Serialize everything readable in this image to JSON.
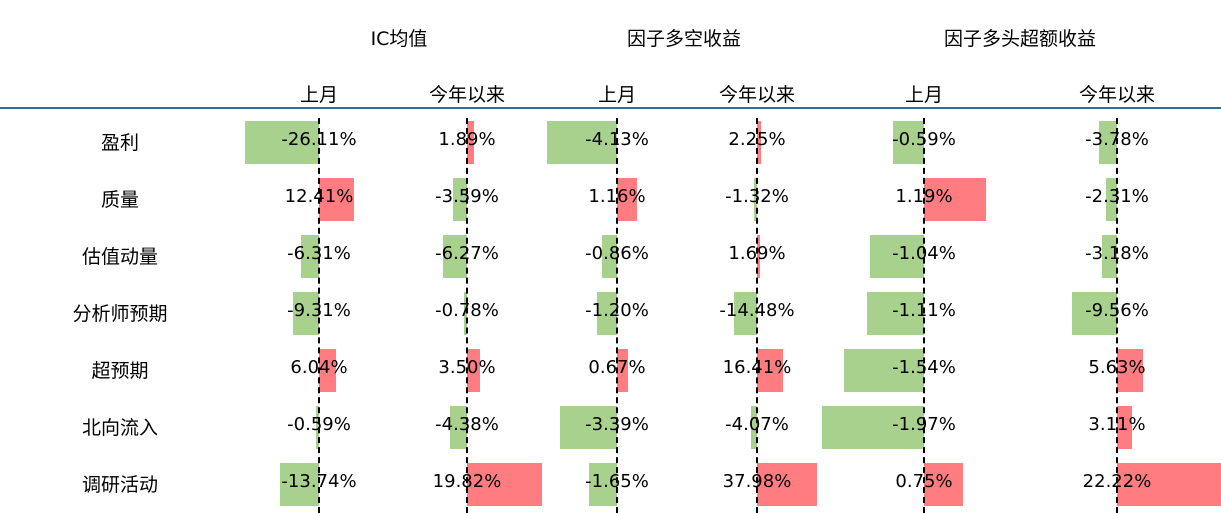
{
  "chart_data": {
    "type": "table",
    "row_labels": [
      "盈利",
      "质量",
      "估值动量",
      "分析师预期",
      "超预期",
      "北向流入",
      "调研活动"
    ],
    "groups": [
      {
        "title": "IC均值",
        "columns": [
          {
            "label": "上月",
            "values": [
              "-26.11%",
              "12.41%",
              "-6.31%",
              "-9.31%",
              "6.04%",
              "-0.59%",
              "-13.74%"
            ],
            "numbers": [
              -26.11,
              12.41,
              -6.31,
              -9.31,
              6.04,
              -0.59,
              -13.74
            ]
          },
          {
            "label": "今年以来",
            "values": [
              "1.89%",
              "-3.59%",
              "-6.27%",
              "-0.78%",
              "3.50%",
              "-4.38%",
              "19.82%"
            ],
            "numbers": [
              1.89,
              -3.59,
              -6.27,
              -0.78,
              3.5,
              -4.38,
              19.82
            ]
          }
        ]
      },
      {
        "title": "因子多空收益",
        "columns": [
          {
            "label": "上月",
            "values": [
              "-4.13%",
              "1.16%",
              "-0.86%",
              "-1.20%",
              "0.67%",
              "-3.39%",
              "-1.65%"
            ],
            "numbers": [
              -4.13,
              1.16,
              -0.86,
              -1.2,
              0.67,
              -3.39,
              -1.65
            ]
          },
          {
            "label": "今年以来",
            "values": [
              "2.25%",
              "-1.32%",
              "1.69%",
              "-14.48%",
              "16.41%",
              "-4.07%",
              "37.98%"
            ],
            "numbers": [
              2.25,
              -1.32,
              1.69,
              -14.48,
              16.41,
              -4.07,
              37.98
            ]
          }
        ]
      },
      {
        "title": "因子多头超额收益",
        "columns": [
          {
            "label": "上月",
            "values": [
              "-0.59%",
              "1.19%",
              "-1.04%",
              "-1.11%",
              "-1.54%",
              "-1.97%",
              "0.75%"
            ],
            "numbers": [
              -0.59,
              1.19,
              -1.04,
              -1.11,
              -1.54,
              -1.97,
              0.75
            ]
          },
          {
            "label": "今年以来",
            "values": [
              "-3.78%",
              "-2.31%",
              "-3.18%",
              "-9.56%",
              "5.63%",
              "3.11%",
              "22.22%"
            ],
            "numbers": [
              -3.78,
              -2.31,
              -3.18,
              -9.56,
              5.63,
              3.11,
              22.22
            ]
          }
        ]
      }
    ],
    "colors": {
      "positive": "#ff7c80",
      "negative": "#a9d18e",
      "header_rule": "#2e6f9e"
    }
  }
}
